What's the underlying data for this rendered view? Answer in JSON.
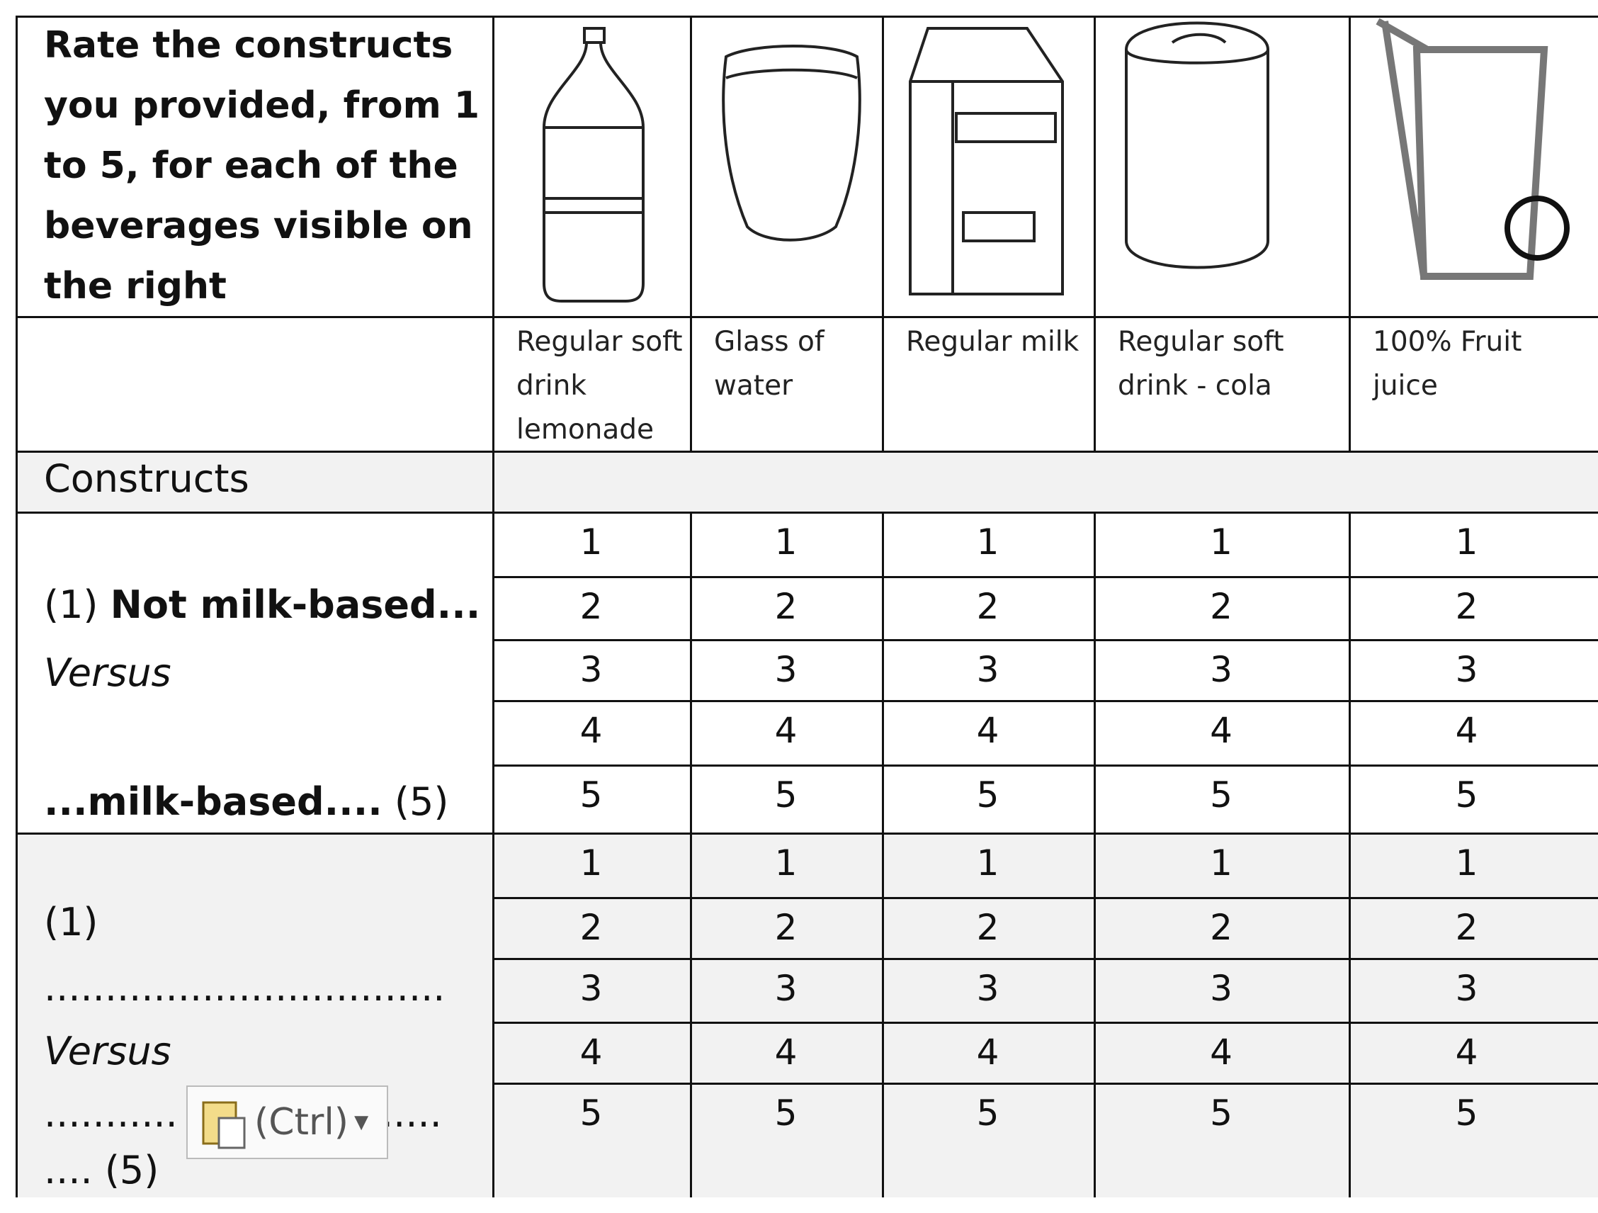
{
  "header": {
    "instruction": "Rate the constructs you provided, from 1 to 5, for each of the beverages visible on the right"
  },
  "beverages": [
    "Regular soft drink lemonade",
    "Glass of water",
    "Regular milk",
    "Regular soft drink - cola",
    "100% Fruit juice"
  ],
  "constructs_label": "Constructs",
  "blocks": [
    {
      "lines": [
        [
          {
            "text": "(1) ",
            "style": "normal"
          },
          {
            "text": "Not milk-based...",
            "style": "bold"
          }
        ],
        [
          {
            "text": "Versus",
            "style": "italic"
          }
        ],
        [
          {
            "text": "...milk-based....",
            "style": "bold"
          },
          {
            "text": " (5)",
            "style": "normal"
          }
        ]
      ],
      "ratings": [
        [
          1,
          1,
          1,
          1,
          1
        ],
        [
          2,
          2,
          2,
          2,
          2
        ],
        [
          3,
          3,
          3,
          3,
          3
        ],
        [
          4,
          4,
          4,
          4,
          4
        ],
        [
          5,
          5,
          5,
          5,
          5
        ]
      ]
    },
    {
      "lines": [
        [
          {
            "text": "(1)",
            "style": "normal"
          }
        ],
        [
          {
            "text": ".................................",
            "style": "normal"
          }
        ],
        [
          {
            "text": "Versus",
            "style": "italic"
          }
        ],
        [
          {
            "text": "...........",
            "style": "normal"
          },
          {
            "text": "......",
            "style": "normal"
          }
        ],
        [
          {
            "text": ".... (5)",
            "style": "normal"
          }
        ]
      ],
      "ratings": [
        [
          1,
          1,
          1,
          1,
          1
        ],
        [
          2,
          2,
          2,
          2,
          2
        ],
        [
          3,
          3,
          3,
          3,
          3
        ],
        [
          4,
          4,
          4,
          4,
          4
        ],
        [
          5,
          5,
          5,
          5,
          5
        ]
      ]
    }
  ],
  "paste_button": "(Ctrl)"
}
